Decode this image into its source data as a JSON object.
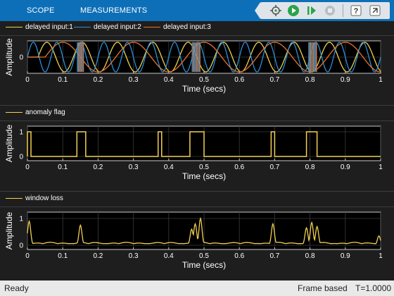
{
  "toolbar": {
    "tabs": [
      "SCOPE",
      "MEASUREMENTS"
    ],
    "icons": [
      "data-cursor-icon",
      "run-icon",
      "step-forward-icon",
      "stop-icon",
      "help-icon",
      "expand-icon"
    ]
  },
  "plots": [
    {
      "legend": [
        "delayed input:1",
        "delayed input:2",
        "delayed input:3"
      ],
      "legend_colors": [
        "#f2d04f",
        "#2b8fd9",
        "#e8752b"
      ],
      "ylabel": "Amplitude",
      "xlabel": "Time (secs)",
      "yticks": [
        "0"
      ],
      "xticks": [
        "0",
        "0.1",
        "0.2",
        "0.3",
        "0.4",
        "0.5",
        "0.6",
        "0.7",
        "0.8",
        "0.9",
        "1"
      ]
    },
    {
      "legend": [
        "anomaly flag"
      ],
      "legend_colors": [
        "#f2d04f"
      ],
      "ylabel": "Amplitude",
      "xlabel": "Time (secs)",
      "yticks": [
        "1",
        "0"
      ],
      "xticks": [
        "0",
        "0.1",
        "0.2",
        "0.3",
        "0.4",
        "0.5",
        "0.6",
        "0.7",
        "0.8",
        "0.9",
        "1"
      ]
    },
    {
      "legend": [
        "window loss"
      ],
      "legend_colors": [
        "#f2d04f"
      ],
      "ylabel": "Amplitude",
      "xlabel": "Time (secs)",
      "yticks": [
        "1",
        "0"
      ],
      "xticks": [
        "0",
        "0.1",
        "0.2",
        "0.3",
        "0.4",
        "0.5",
        "0.6",
        "0.7",
        "0.8",
        "0.9",
        "1"
      ]
    }
  ],
  "chart_data": [
    {
      "type": "line",
      "xlim": [
        0,
        1
      ],
      "series": [
        {
          "name": "delayed input:1",
          "freq": 10,
          "delay": 0.03
        },
        {
          "name": "delayed input:2",
          "freq": 15,
          "delay": 0.0
        },
        {
          "name": "delayed input:3",
          "freq": 5,
          "delay": 0.05
        }
      ],
      "anomaly_windows": [
        [
          0.14,
          0.16
        ],
        [
          0.465,
          0.49
        ],
        [
          0.795,
          0.82
        ]
      ]
    },
    {
      "type": "line",
      "xlim": [
        0,
        1
      ],
      "ylim": [
        0,
        1
      ],
      "series": [
        {
          "name": "anomaly flag",
          "pulses": [
            [
              0.0,
              0.01
            ],
            [
              0.14,
              0.165
            ],
            [
              0.37,
              0.38
            ],
            [
              0.46,
              0.5
            ],
            [
              0.69,
              0.7
            ],
            [
              0.79,
              0.82
            ]
          ]
        }
      ]
    },
    {
      "type": "line",
      "xlim": [
        0,
        1
      ],
      "ylim": [
        0,
        1
      ],
      "series": [
        {
          "name": "window loss",
          "peaks": [
            [
              0.005,
              0.9
            ],
            [
              0.15,
              0.75
            ],
            [
              0.465,
              0.6
            ],
            [
              0.475,
              0.8
            ],
            [
              0.49,
              1.0
            ],
            [
              0.695,
              0.8
            ],
            [
              0.79,
              0.65
            ],
            [
              0.805,
              0.85
            ],
            [
              0.82,
              0.7
            ],
            [
              0.995,
              0.35
            ]
          ]
        }
      ]
    }
  ],
  "status": {
    "left": "Ready",
    "mode": "Frame based",
    "time": "T=1.0000"
  }
}
